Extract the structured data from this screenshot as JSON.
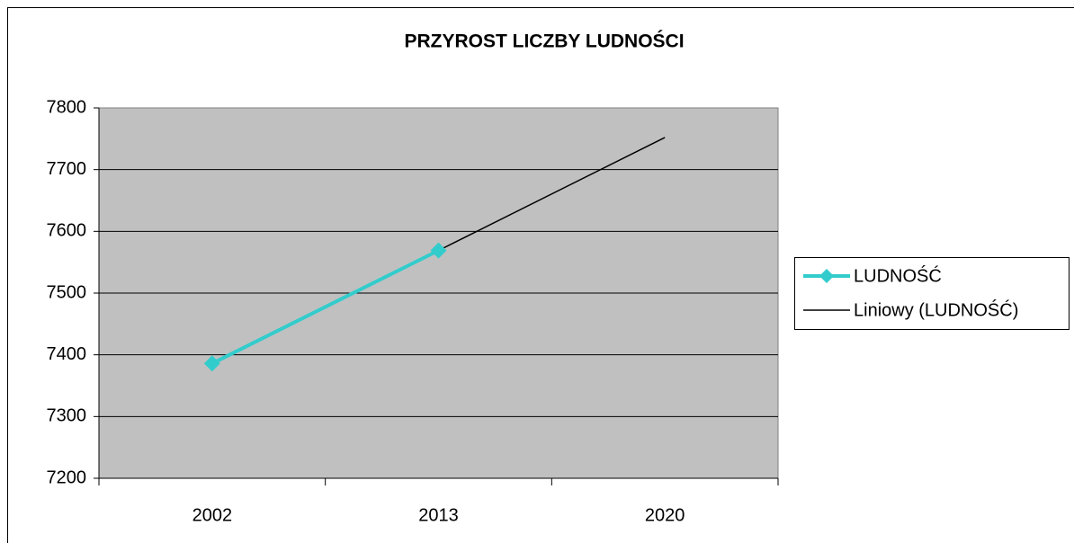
{
  "chart_data": {
    "type": "line",
    "title": "PRZYROST LICZBY LUDNOŚCI",
    "categories": [
      "2002",
      "2013",
      "2020"
    ],
    "series": [
      {
        "name": "LUDNOŚĆ",
        "color": "#33cccc",
        "marker": "diamond",
        "values": [
          7386,
          7569,
          null
        ]
      },
      {
        "name": "Liniowy (LUDNOŚĆ)",
        "color": "#000000",
        "values": [
          7386,
          7569,
          7752
        ]
      }
    ],
    "ylim": [
      7200,
      7800
    ],
    "yticks": [
      7200,
      7300,
      7400,
      7500,
      7600,
      7700,
      7800
    ],
    "grid": true,
    "legend": "right"
  }
}
